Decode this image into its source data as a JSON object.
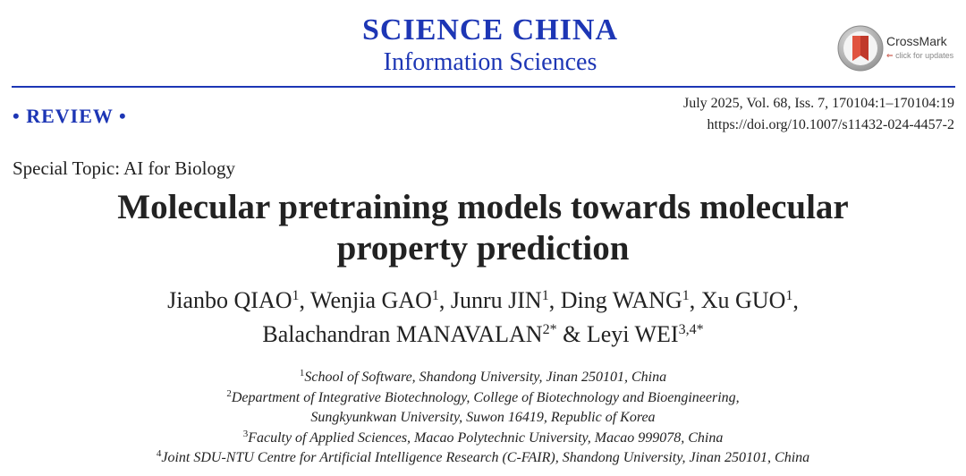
{
  "journal": {
    "name": "SCIENCE CHINA",
    "subtitle": "Information Sciences"
  },
  "crossmark": {
    "title": "CrossMark",
    "subtitle": "click for updates",
    "colors": {
      "outer": "#b0b0b0",
      "inner": "#c0392b"
    }
  },
  "article_type": "• REVIEW •",
  "citation": {
    "issue_line": "July 2025, Vol. 68, Iss. 7, 170104:1–170104:19",
    "doi": "https://doi.org/10.1007/s11432-024-4457-2"
  },
  "special_topic": "Special Topic: AI for Biology",
  "title_lines": [
    "Molecular pretraining models towards molecular",
    "property prediction"
  ],
  "authors": [
    {
      "name": "Jianbo QIAO",
      "sup": "1",
      "sep": ", "
    },
    {
      "name": "Wenjia GAO",
      "sup": "1",
      "sep": ", "
    },
    {
      "name": "Junru JIN",
      "sup": "1",
      "sep": ", "
    },
    {
      "name": "Ding WANG",
      "sup": "1",
      "sep": ", "
    },
    {
      "name": "Xu GUO",
      "sup": "1",
      "sep": ","
    },
    {
      "name": "Balachandran MANAVALAN",
      "sup": "2*",
      "sep": " & "
    },
    {
      "name": "Leyi WEI",
      "sup": "3,4*",
      "sep": ""
    }
  ],
  "affiliations": [
    {
      "sup": "1",
      "text": "School of Software, Shandong University, Jinan 250101, China"
    },
    {
      "sup": "2",
      "text": "Department of Integrative Biotechnology, College of Biotechnology and Bioengineering,"
    },
    {
      "sup": "",
      "text": "Sungkyunkwan University, Suwon 16419, Republic of Korea"
    },
    {
      "sup": "3",
      "text": "Faculty of Applied Sciences, Macao Polytechnic University, Macao 999078, China"
    },
    {
      "sup": "4",
      "text": "Joint SDU-NTU Centre for Artificial Intelligence Research (C-FAIR), Shandong University, Jinan 250101, China"
    }
  ],
  "colors": {
    "journal_blue": "#1d36b5",
    "text": "#222222"
  }
}
